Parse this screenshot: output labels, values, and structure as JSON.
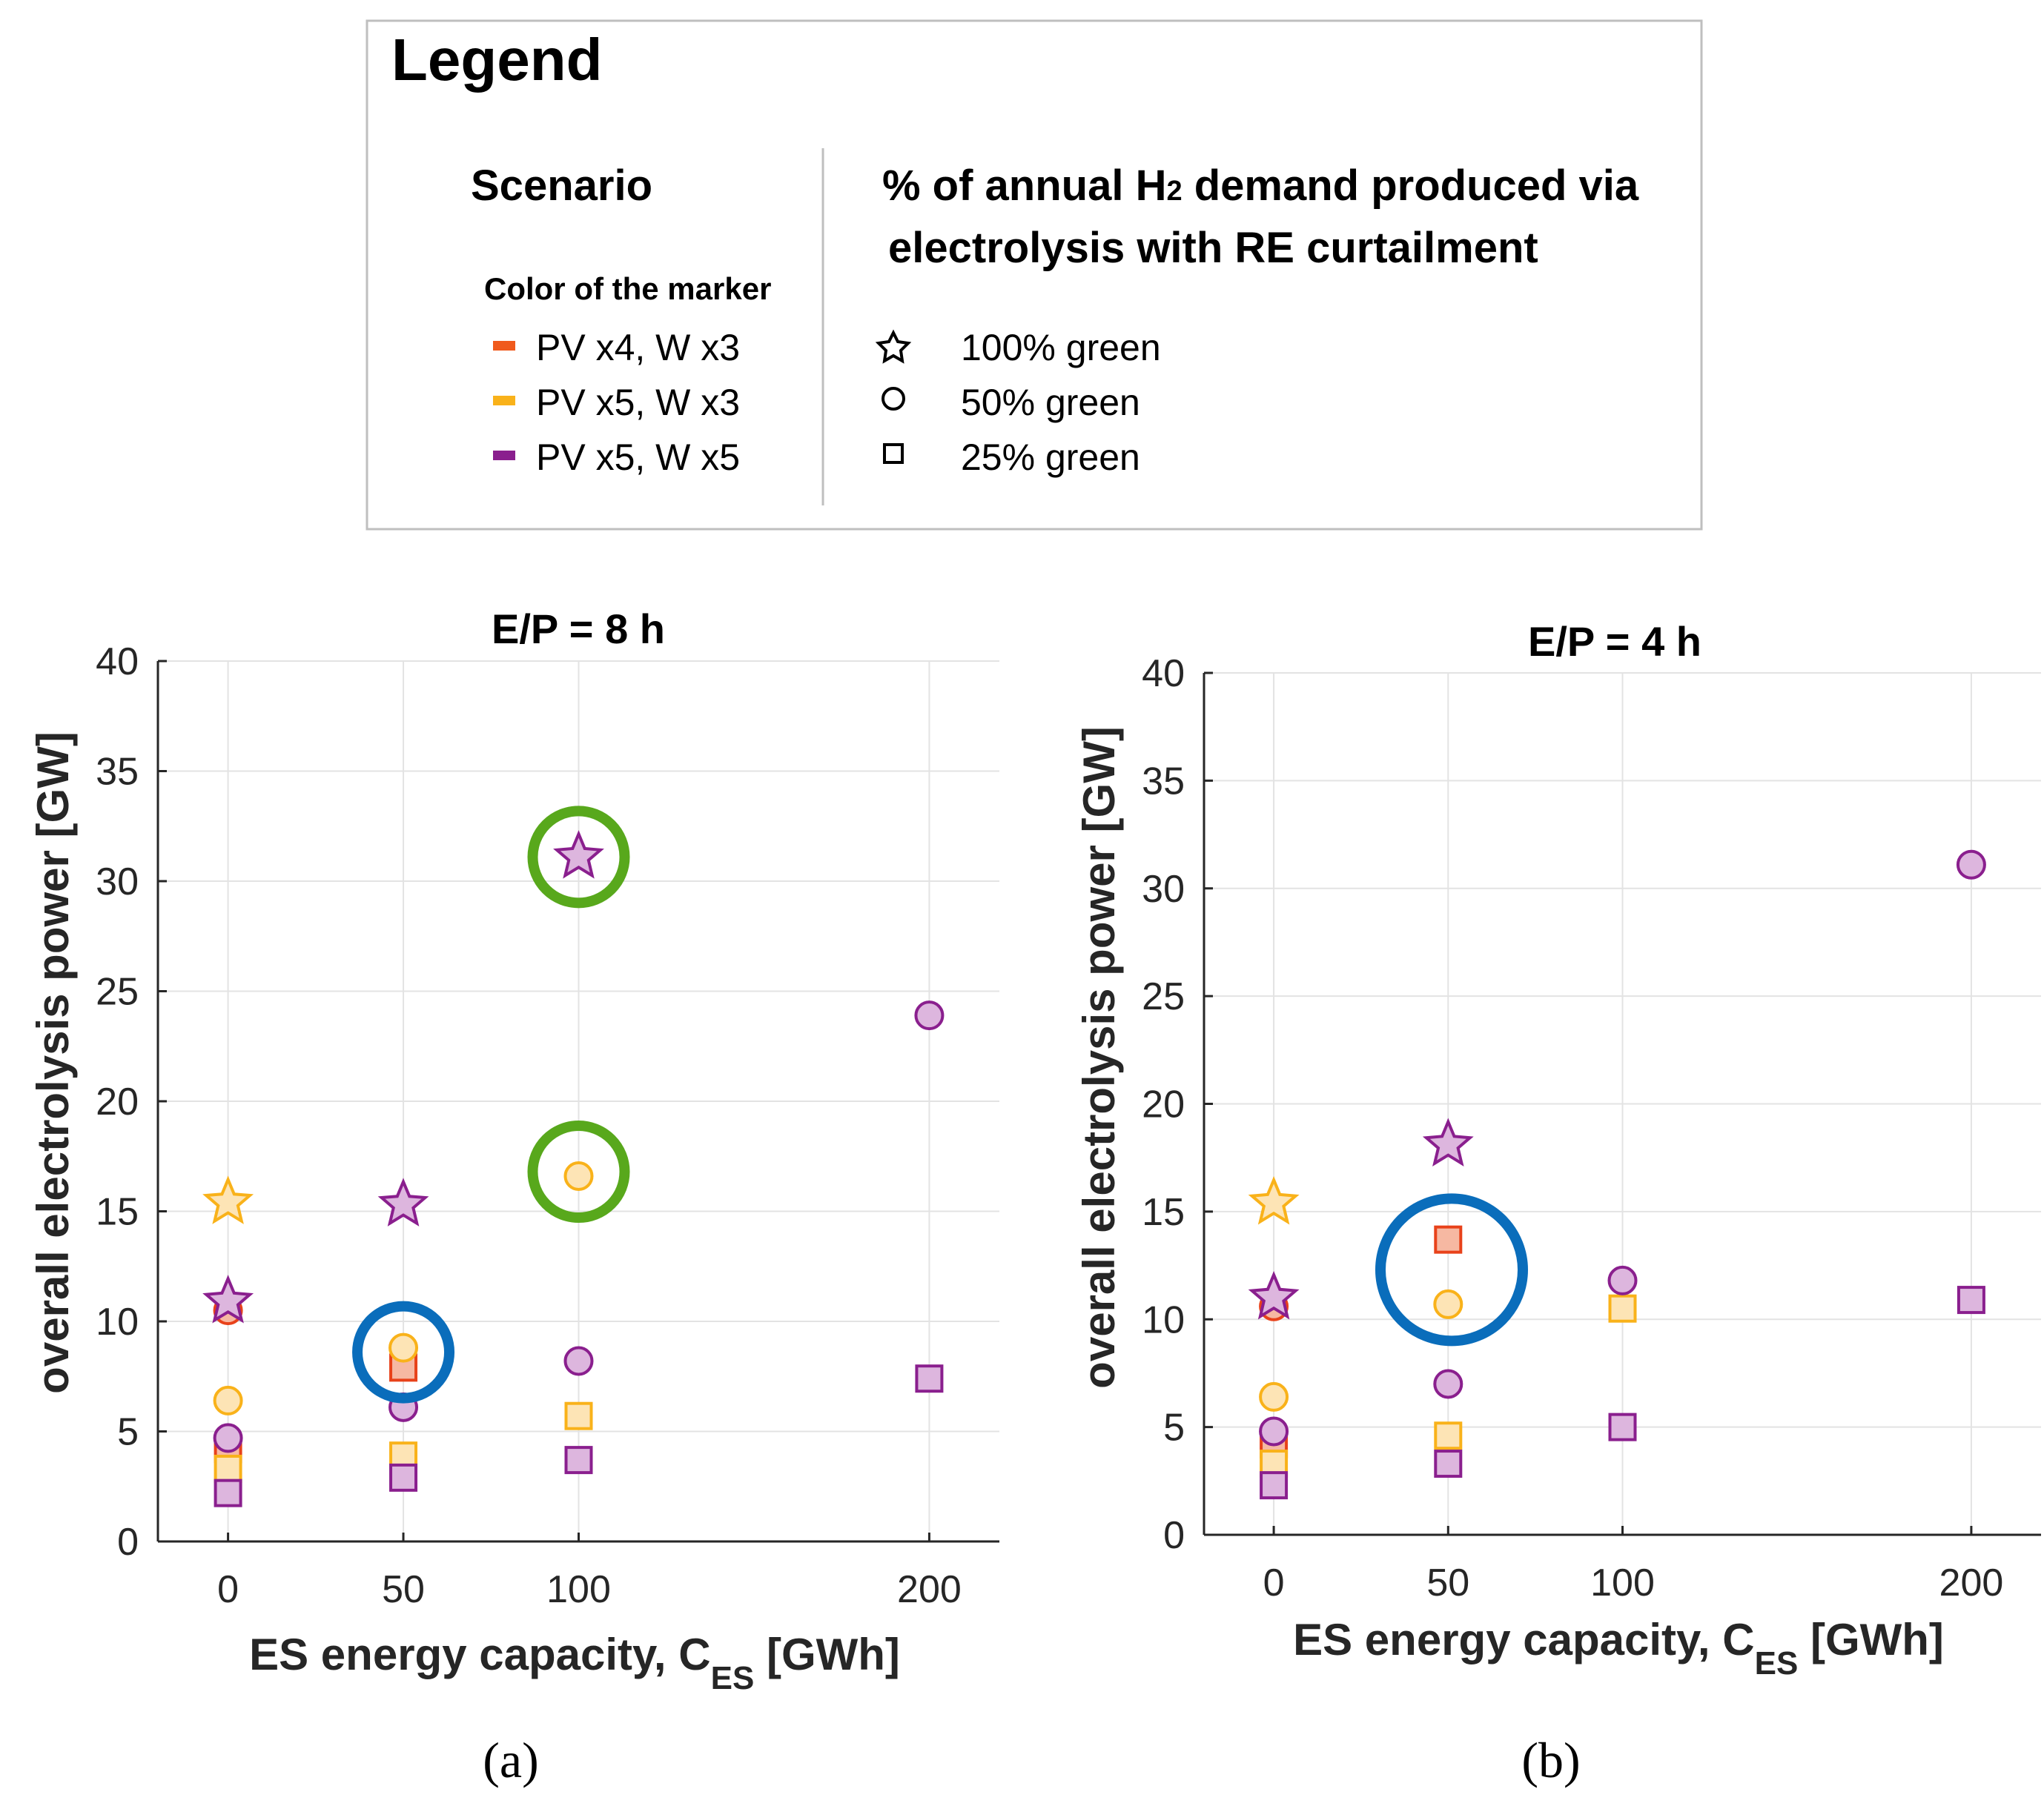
{
  "legend": {
    "title": "Legend",
    "scenario_heading": "Scenario",
    "color_heading": "Color of the marker",
    "scenarios": [
      {
        "label": "PV x4, W x3",
        "color": "#f05a1c"
      },
      {
        "label": "PV x5, W x3",
        "color": "#f9b21a"
      },
      {
        "label": "PV x5, W x5",
        "color": "#8a1f8e"
      }
    ],
    "share_heading_line1_pre": "% of annual H",
    "share_heading_line1_sub": "2",
    "share_heading_line1_post": " demand produced via",
    "share_heading_line2": "electrolysis with RE curtailment",
    "markers": [
      {
        "shape": "star-icon",
        "label": "100% green"
      },
      {
        "shape": "circle-icon",
        "label": "50% green"
      },
      {
        "shape": "square-icon",
        "label": "25% green"
      }
    ]
  },
  "colors": {
    "PV x4, W x3": {
      "stroke": "#e8421a",
      "fill": "#f6b8a2"
    },
    "PV x5, W x3": {
      "stroke": "#f9b21a",
      "fill": "#fde4b5"
    },
    "PV x5, W x5": {
      "stroke": "#8a1f8e",
      "fill": "#ddb6de"
    },
    "highlight_green": "#58a81c",
    "highlight_blue": "#0a6dbb"
  },
  "chart_data": [
    {
      "type": "scatter",
      "panel": "a",
      "caption": "(a)",
      "title": "E/P = 8 h",
      "ylabel": "overall electrolysis power [GW]",
      "xlabel_main": "ES energy capacity, C",
      "xlabel_sub": "ES",
      "xlabel_post": " [GWh]",
      "xticks": [
        0,
        50,
        100,
        200
      ],
      "yticks": [
        0,
        5,
        10,
        15,
        20,
        25,
        30,
        35,
        40
      ],
      "ylim": [
        0,
        40
      ],
      "xlim": [
        -20,
        220
      ],
      "grid": true,
      "points": [
        {
          "x": 0,
          "y": 15.4,
          "scenario": "PV x5, W x3",
          "shape": "star"
        },
        {
          "x": 0,
          "y": 10.9,
          "scenario": "PV x5, W x5",
          "shape": "star"
        },
        {
          "x": 0,
          "y": 10.5,
          "scenario": "PV x4, W x3",
          "shape": "circle"
        },
        {
          "x": 0,
          "y": 6.4,
          "scenario": "PV x5, W x3",
          "shape": "circle"
        },
        {
          "x": 0,
          "y": 4.7,
          "scenario": "PV x5, W x5",
          "shape": "circle"
        },
        {
          "x": 0,
          "y": 4.2,
          "scenario": "PV x4, W x3",
          "shape": "square"
        },
        {
          "x": 0,
          "y": 3.3,
          "scenario": "PV x5, W x3",
          "shape": "square"
        },
        {
          "x": 0,
          "y": 2.2,
          "scenario": "PV x5, W x5",
          "shape": "square"
        },
        {
          "x": 50,
          "y": 15.3,
          "scenario": "PV x5, W x5",
          "shape": "star"
        },
        {
          "x": 50,
          "y": 8.8,
          "scenario": "PV x5, W x3",
          "shape": "circle"
        },
        {
          "x": 50,
          "y": 7.9,
          "scenario": "PV x4, W x3",
          "shape": "square"
        },
        {
          "x": 50,
          "y": 6.1,
          "scenario": "PV x5, W x5",
          "shape": "circle"
        },
        {
          "x": 50,
          "y": 3.9,
          "scenario": "PV x5, W x3",
          "shape": "square"
        },
        {
          "x": 50,
          "y": 2.9,
          "scenario": "PV x5, W x5",
          "shape": "square"
        },
        {
          "x": 100,
          "y": 31.1,
          "scenario": "PV x5, W x5",
          "shape": "star"
        },
        {
          "x": 100,
          "y": 16.6,
          "scenario": "PV x5, W x3",
          "shape": "circle"
        },
        {
          "x": 100,
          "y": 8.2,
          "scenario": "PV x5, W x5",
          "shape": "circle"
        },
        {
          "x": 100,
          "y": 5.7,
          "scenario": "PV x5, W x3",
          "shape": "square"
        },
        {
          "x": 100,
          "y": 3.7,
          "scenario": "PV x5, W x5",
          "shape": "square"
        },
        {
          "x": 200,
          "y": 23.9,
          "scenario": "PV x5, W x5",
          "shape": "circle"
        },
        {
          "x": 200,
          "y": 7.4,
          "scenario": "PV x5, W x5",
          "shape": "square"
        }
      ],
      "highlights": [
        {
          "x": 100,
          "y": 31.1,
          "color": "highlight_green",
          "size": "small"
        },
        {
          "x": 100,
          "y": 16.8,
          "color": "highlight_green",
          "size": "small"
        },
        {
          "x": 50,
          "y": 8.6,
          "color": "highlight_blue",
          "size": "small"
        }
      ]
    },
    {
      "type": "scatter",
      "panel": "b",
      "caption": "(b)",
      "title": "E/P = 4 h",
      "ylabel": "overall electrolysis power [GW]",
      "xlabel_main": "ES energy capacity, C",
      "xlabel_sub": "ES",
      "xlabel_post": " [GWh]",
      "xticks": [
        0,
        50,
        100,
        200
      ],
      "yticks": [
        0,
        5,
        10,
        15,
        20,
        25,
        30,
        35,
        40
      ],
      "ylim": [
        0,
        40
      ],
      "xlim": [
        -20,
        220
      ],
      "grid": true,
      "points": [
        {
          "x": 0,
          "y": 15.4,
          "scenario": "PV x5, W x3",
          "shape": "star"
        },
        {
          "x": 0,
          "y": 11.0,
          "scenario": "PV x5, W x5",
          "shape": "star"
        },
        {
          "x": 0,
          "y": 10.6,
          "scenario": "PV x4, W x3",
          "shape": "circle"
        },
        {
          "x": 0,
          "y": 6.4,
          "scenario": "PV x5, W x3",
          "shape": "circle"
        },
        {
          "x": 0,
          "y": 4.8,
          "scenario": "PV x5, W x5",
          "shape": "circle"
        },
        {
          "x": 0,
          "y": 4.2,
          "scenario": "PV x4, W x3",
          "shape": "square"
        },
        {
          "x": 0,
          "y": 3.3,
          "scenario": "PV x5, W x3",
          "shape": "square"
        },
        {
          "x": 0,
          "y": 2.3,
          "scenario": "PV x5, W x5",
          "shape": "square"
        },
        {
          "x": 50,
          "y": 18.1,
          "scenario": "PV x5, W x5",
          "shape": "star"
        },
        {
          "x": 50,
          "y": 13.7,
          "scenario": "PV x4, W x3",
          "shape": "square"
        },
        {
          "x": 50,
          "y": 10.7,
          "scenario": "PV x5, W x3",
          "shape": "circle"
        },
        {
          "x": 50,
          "y": 7.0,
          "scenario": "PV x5, W x5",
          "shape": "circle"
        },
        {
          "x": 50,
          "y": 4.6,
          "scenario": "PV x5, W x3",
          "shape": "square"
        },
        {
          "x": 50,
          "y": 3.3,
          "scenario": "PV x5, W x5",
          "shape": "square"
        },
        {
          "x": 100,
          "y": 11.8,
          "scenario": "PV x5, W x5",
          "shape": "circle"
        },
        {
          "x": 100,
          "y": 10.5,
          "scenario": "PV x5, W x3",
          "shape": "square"
        },
        {
          "x": 100,
          "y": 5.0,
          "scenario": "PV x5, W x5",
          "shape": "square"
        },
        {
          "x": 200,
          "y": 31.1,
          "scenario": "PV x5, W x5",
          "shape": "circle"
        },
        {
          "x": 200,
          "y": 10.9,
          "scenario": "PV x5, W x5",
          "shape": "square"
        }
      ],
      "highlights": [
        {
          "x": 51,
          "y": 12.3,
          "color": "highlight_blue",
          "size": "large"
        }
      ]
    }
  ]
}
